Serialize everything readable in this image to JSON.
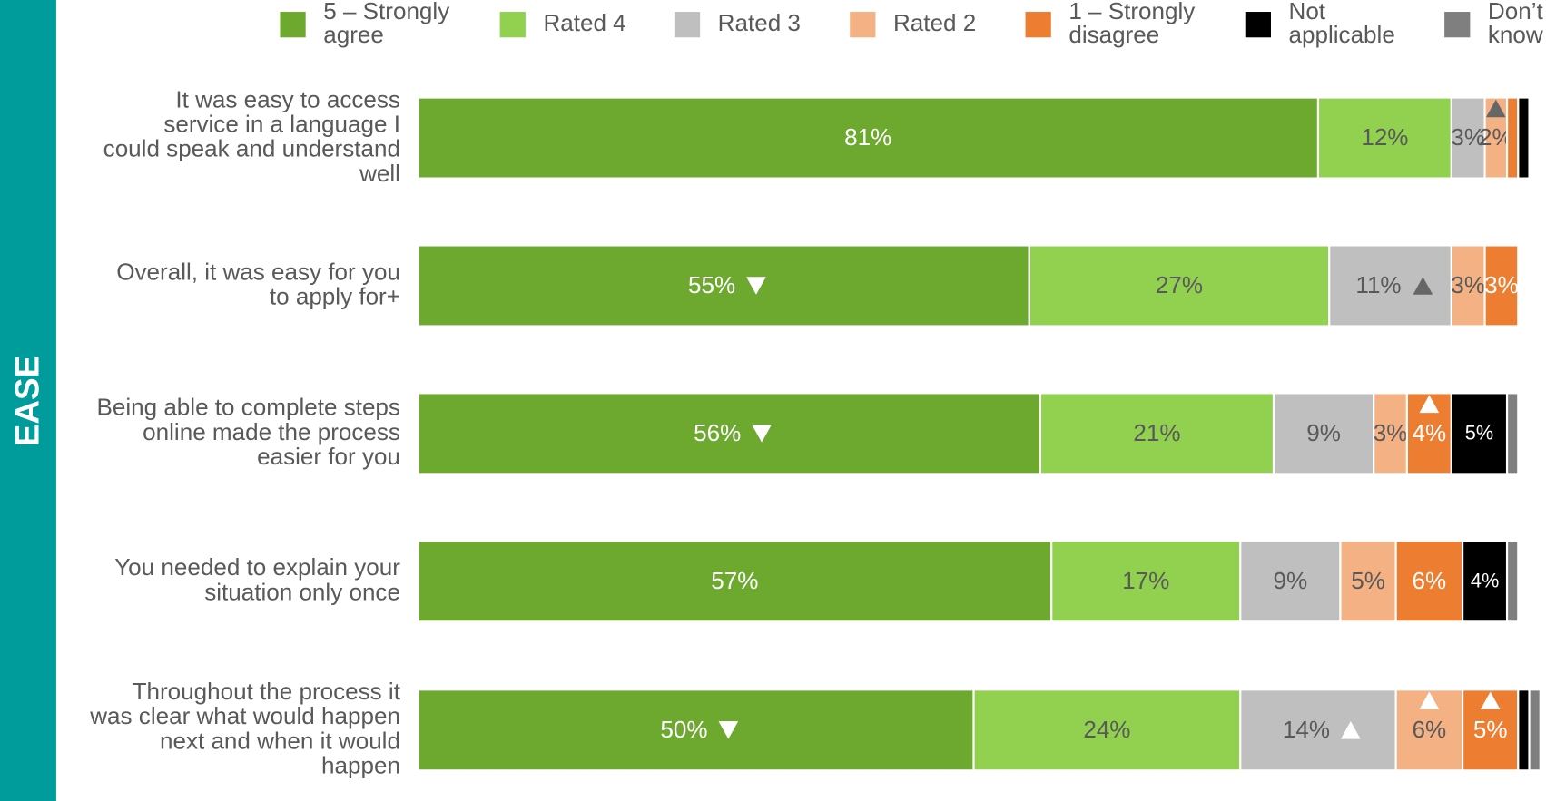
{
  "chart_data": {
    "type": "stacked-barh",
    "section_label": "EASE",
    "categories": [
      "It was easy to access service in a language I could speak and understand well",
      "Overall, it was easy for you to apply for+",
      "Being able to complete steps online made the process easier for you",
      "You needed to explain your situation only once",
      "Throughout the process it was clear what would happen next and when it would happen"
    ],
    "xlim": [
      0,
      100
    ],
    "series": [
      {
        "name": "5 – Strongly agree",
        "color": "#6ea92f",
        "label_color": "#ffffff",
        "values": [
          81,
          55,
          56,
          57,
          50
        ],
        "value_labels": [
          "81%",
          "55%",
          "56%",
          "57%",
          "50%"
        ],
        "trend": [
          null,
          "down",
          "down",
          null,
          "down"
        ]
      },
      {
        "name": "Rated 4",
        "color": "#92d050",
        "label_color": "#595959",
        "values": [
          12,
          27,
          21,
          17,
          24
        ],
        "value_labels": [
          "12%",
          "27%",
          "21%",
          "17%",
          "24%"
        ],
        "trend": [
          null,
          null,
          null,
          null,
          null
        ]
      },
      {
        "name": "Rated 3",
        "color": "#bfbfbf",
        "label_color": "#595959",
        "values": [
          3,
          11,
          9,
          9,
          14
        ],
        "value_labels": [
          "3%",
          "11%",
          "9%",
          "9%",
          "14%"
        ],
        "trend": [
          null,
          "up",
          null,
          null,
          "up"
        ]
      },
      {
        "name": "Rated 2",
        "color": "#f4b183",
        "label_color": "#595959",
        "values": [
          2,
          3,
          3,
          5,
          6
        ],
        "value_labels": [
          "2%",
          "3%",
          "3%",
          "5%",
          "6%"
        ],
        "trend": [
          "up",
          null,
          null,
          null,
          "up"
        ]
      },
      {
        "name": "1 – Strongly disagree",
        "color": "#ed7d31",
        "label_color": "#ffffff",
        "values": [
          1,
          3,
          4,
          6,
          5
        ],
        "value_labels": [
          null,
          "3%",
          "4%",
          "6%",
          "5%"
        ],
        "trend": [
          null,
          null,
          "up",
          null,
          "up"
        ]
      },
      {
        "name": "Not applicable",
        "color": "#000000",
        "label_color": "#ffffff",
        "values": [
          1,
          0,
          5,
          4,
          1
        ],
        "value_labels": [
          null,
          null,
          "5%",
          "4%",
          null
        ],
        "trend": [
          null,
          null,
          null,
          null,
          null
        ]
      },
      {
        "name": "Don’t know",
        "color": "#7f7f7f",
        "label_color": "#ffffff",
        "values": [
          0,
          0,
          1,
          1,
          1
        ],
        "value_labels": [
          null,
          null,
          null,
          null,
          null
        ],
        "trend": [
          null,
          null,
          null,
          null,
          null
        ]
      }
    ]
  }
}
